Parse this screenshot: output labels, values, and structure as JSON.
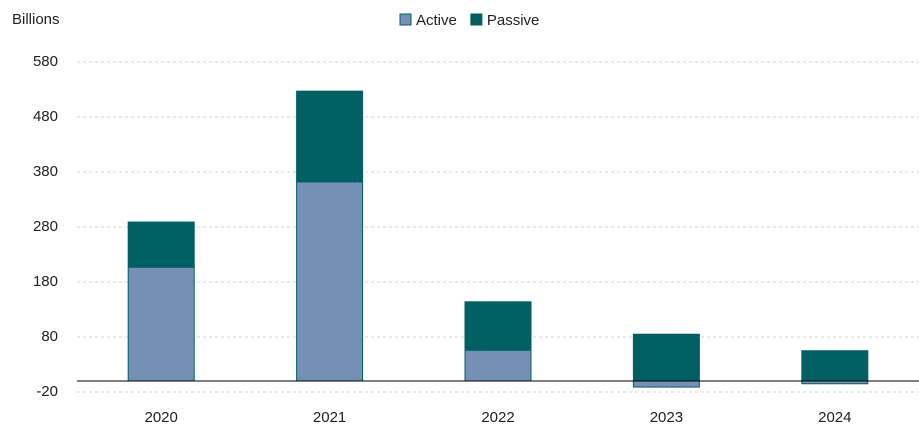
{
  "chart_data": {
    "type": "stacked_bar",
    "y_label": "Billions",
    "categories": [
      "2020",
      "2021",
      "2022",
      "2023",
      "2024"
    ],
    "series": [
      {
        "name": "Active",
        "color": "#7490b5",
        "values": [
          207,
          362,
          56,
          -11,
          -5
        ]
      },
      {
        "name": "Passive",
        "color": "#005f63",
        "values": [
          82,
          165,
          88,
          85,
          55
        ]
      }
    ],
    "ylim": [
      -20,
      580
    ],
    "yticks": [
      -20,
      80,
      180,
      280,
      380,
      480,
      580
    ],
    "grid": true,
    "legend": "top"
  }
}
